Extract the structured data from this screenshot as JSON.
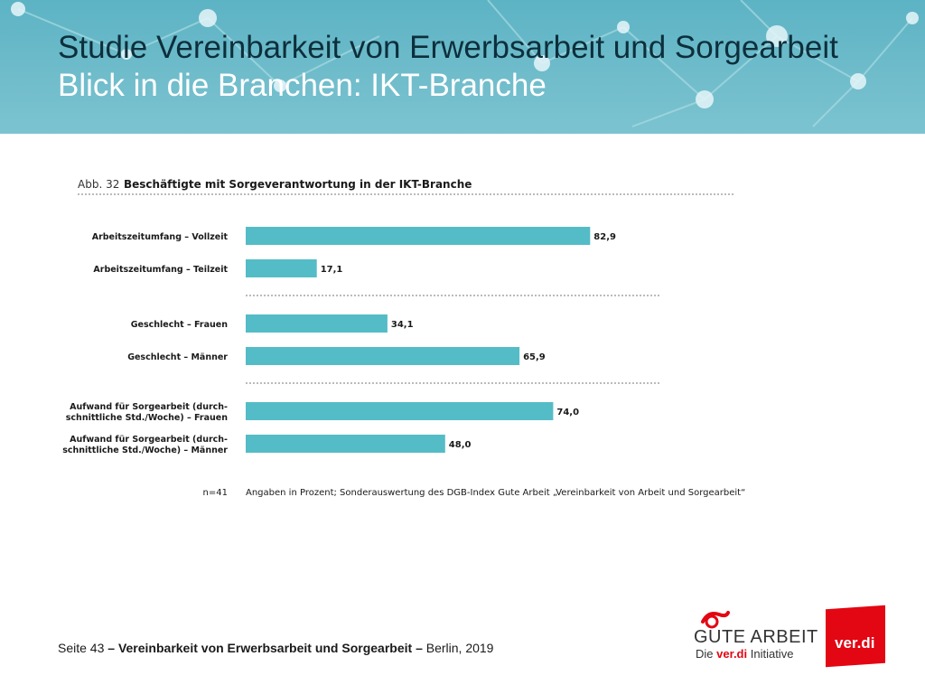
{
  "slide": {
    "title": "Studie Vereinbarkeit von Erwerbsarbeit und Sorgearbeit",
    "subtitle": "Blick in die Branchen: IKT-Branche"
  },
  "chart_data": {
    "type": "bar",
    "orientation": "horizontal",
    "figure_label": "Abb. 32",
    "title": "Beschäftigte mit Sorgeverantwortung in der IKT-Branche",
    "groups": [
      {
        "items": [
          {
            "label": [
              "Arbeitszeitumfang – Vollzeit"
            ],
            "value": 82.9,
            "display": "82,9"
          },
          {
            "label": [
              "Arbeitszeitumfang – Teilzeit"
            ],
            "value": 17.1,
            "display": "17,1"
          }
        ]
      },
      {
        "items": [
          {
            "label": [
              "Geschlecht – Frauen"
            ],
            "value": 34.1,
            "display": "34,1"
          },
          {
            "label": [
              "Geschlecht – Männer"
            ],
            "value": 65.9,
            "display": "65,9"
          }
        ]
      },
      {
        "items": [
          {
            "label": [
              "Aufwand für Sorgearbeit (durch-",
              "schnittliche Std./Woche) – Frauen"
            ],
            "value": 74.0,
            "display": "74,0"
          },
          {
            "label": [
              "Aufwand für Sorgearbeit (durch-",
              "schnittliche Std./Woche) – Männer"
            ],
            "value": 48.0,
            "display": "48,0"
          }
        ]
      }
    ],
    "xlim": [
      0,
      100
    ],
    "bar_color": "#54bcc6",
    "sample_note": "n=41",
    "source_note": "Angaben in Prozent; Sonderauswertung des DGB-Index Gute Arbeit „Vereinbarkeit von Arbeit und Sorgearbeit“"
  },
  "footer": {
    "page": "Seite 43",
    "sep1": "–",
    "study": "Vereinbarkeit von Erwerbsarbeit und Sorgearbeit",
    "sep2": "–",
    "place_year": "Berlin, 2019"
  },
  "logos": {
    "gute_arbeit": "GUTE ARBEIT",
    "gute_arbeit_sub_pre": "Die",
    "gute_arbeit_sub_brand": "ver.di",
    "gute_arbeit_sub_post": "Initiative",
    "verdi": "ver.di"
  },
  "colors": {
    "header": "#6fbccb",
    "title": "#0d2f3c",
    "subtitle": "#ffffff",
    "verdi_red": "#e30613"
  }
}
